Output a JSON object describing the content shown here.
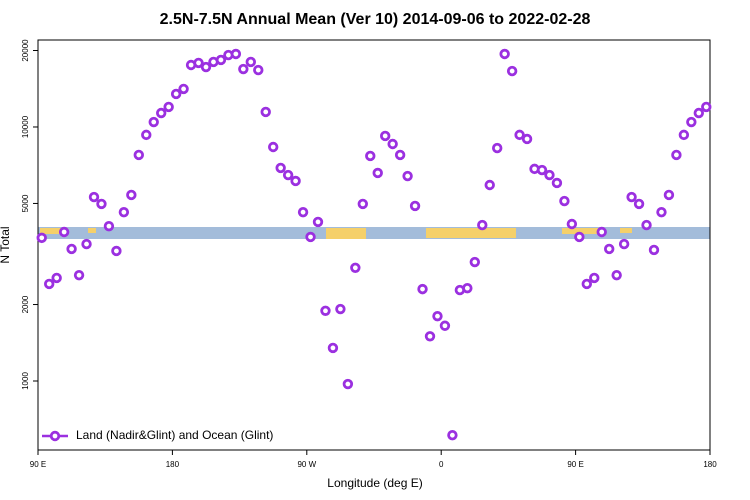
{
  "chart_data": {
    "type": "scatter",
    "title": "2.5N-7.5N Annual Mean (Ver 10)   2014-09-06 to 2022-02-28",
    "xlabel": "Longitude (deg E)",
    "ylabel": "N Total",
    "series": [
      {
        "name": "Land (Nadir&Glint) and Ocean (Glint)",
        "color": "#9b30e0",
        "x": [
          92.5,
          97.5,
          102.5,
          107.5,
          112.5,
          117.5,
          122.5,
          127.5,
          132.5,
          137.5,
          142.5,
          147.5,
          152.5,
          157.5,
          162.5,
          167.5,
          172.5,
          177.5,
          182.5,
          187.5,
          192.5,
          197.5,
          202.5,
          207.5,
          212.5,
          217.5,
          222.5,
          227.5,
          232.5,
          237.5,
          242.5,
          247.5,
          252.5,
          257.5,
          262.5,
          267.5,
          272.5,
          277.5,
          282.5,
          287.5,
          292.5,
          297.5,
          302.5,
          307.5,
          312.5,
          317.5,
          322.5,
          327.5,
          332.5,
          337.5,
          342.5,
          347.5,
          352.5,
          357.5,
          362.5,
          367.5,
          372.5,
          377.5,
          382.5,
          387.5,
          392.5,
          397.5,
          402.5,
          407.5,
          412.5,
          417.5,
          422.5,
          427.5,
          432.5,
          437.5,
          442.5,
          447.5,
          452.5,
          457.5,
          462.5,
          467.5,
          472.5,
          477.5,
          482.5,
          487.5,
          492.5,
          497.5,
          502.5,
          507.5,
          512.5,
          517.5,
          522.5,
          527.5,
          532.5,
          537.5
        ],
        "values": [
          3660,
          2410,
          2545,
          3860,
          3310,
          2610,
          3460,
          5300,
          4980,
          4070,
          3250,
          4620,
          5400,
          7760,
          9310,
          10460,
          11350,
          11990,
          13490,
          14120,
          17540,
          17870,
          17220,
          18030,
          18360,
          19190,
          19380,
          16910,
          18030,
          16750,
          11460,
          8340,
          6900,
          6470,
          6130,
          4620,
          3690,
          4230,
          1890,
          1350,
          1920,
          973,
          2790,
          4980,
          7690,
          6590,
          9220,
          8570,
          7760,
          6410,
          4890,
          2300,
          1500,
          1800,
          1650,
          612,
          2280,
          2320,
          2940,
          4110,
          5910,
          8260,
          19380,
          16600,
          9310,
          8970,
          6840,
          6770,
          6470,
          6020,
          5110,
          4150,
          3690,
          2410,
          2545,
          3860,
          3310,
          2610,
          3460,
          5300,
          4980,
          4110,
          3280,
          4620,
          5400,
          7760,
          9310,
          10460,
          11350,
          11990
        ]
      }
    ],
    "xlim": [
      90,
      540
    ],
    "xticks": [
      {
        "value": 90,
        "label": "90 E"
      },
      {
        "value": 180,
        "label": "180"
      },
      {
        "value": 270,
        "label": "90 W"
      },
      {
        "value": 360,
        "label": "0"
      },
      {
        "value": 450,
        "label": "90 E"
      },
      {
        "value": 540,
        "label": "180"
      }
    ],
    "ylim": [
      535,
      22000
    ],
    "yticks": [
      1000,
      2000,
      5000,
      10000,
      20000
    ],
    "log_y": true,
    "legend": "lower left"
  }
}
